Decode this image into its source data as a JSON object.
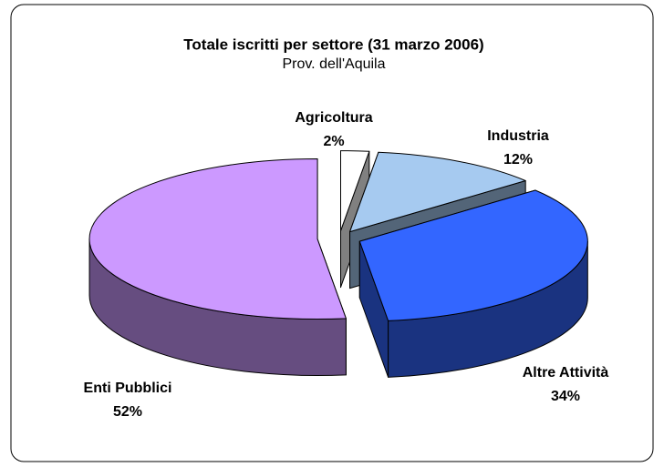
{
  "chart_data": {
    "type": "pie",
    "title": "Totale iscritti per settore (31 marzo 2006)",
    "subtitle": "Prov. dell'Aquila",
    "categories": [
      "Agricoltura",
      "Industria",
      "Altre Attività",
      "Enti Pubblici"
    ],
    "values": [
      2,
      12,
      34,
      52
    ],
    "value_labels": [
      "2%",
      "12%",
      "34%",
      "52%"
    ],
    "colors": [
      "#ffffff",
      "#a6caf0",
      "#3366ff",
      "#cc99ff"
    ]
  }
}
